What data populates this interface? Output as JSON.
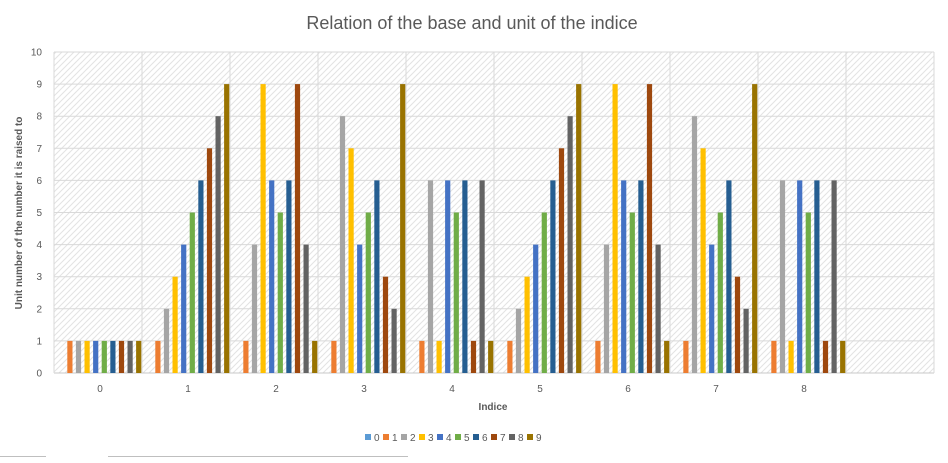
{
  "chart_data": {
    "type": "bar",
    "title": "Relation of the base and unit of the indice",
    "xlabel": "Indice",
    "ylabel": "Unit number of the number it is raised to",
    "ylim": [
      0,
      10
    ],
    "yticks": [
      "0",
      "1",
      "2",
      "3",
      "4",
      "5",
      "6",
      "7",
      "8",
      "9",
      "10"
    ],
    "categories": [
      "0",
      "1",
      "2",
      "3",
      "4",
      "5",
      "6",
      "7",
      "8"
    ],
    "grid": true,
    "legend_position": "bottom",
    "series": [
      {
        "name": "0",
        "color": "#5B9BD5",
        "values": [
          0,
          0,
          0,
          0,
          0,
          0,
          0,
          0,
          0
        ]
      },
      {
        "name": "1",
        "color": "#ED7D31",
        "values": [
          1,
          1,
          1,
          1,
          1,
          1,
          1,
          1,
          1
        ]
      },
      {
        "name": "2",
        "color": "#A5A5A5",
        "values": [
          1,
          2,
          4,
          8,
          6,
          2,
          4,
          8,
          6
        ]
      },
      {
        "name": "3",
        "color": "#FFC000",
        "values": [
          1,
          3,
          9,
          7,
          1,
          3,
          9,
          7,
          1
        ]
      },
      {
        "name": "4",
        "color": "#4472C4",
        "values": [
          1,
          4,
          6,
          4,
          6,
          4,
          6,
          4,
          6
        ]
      },
      {
        "name": "5",
        "color": "#70AD47",
        "values": [
          1,
          5,
          5,
          5,
          5,
          5,
          5,
          5,
          5
        ]
      },
      {
        "name": "6",
        "color": "#255E91",
        "values": [
          1,
          6,
          6,
          6,
          6,
          6,
          6,
          6,
          6
        ]
      },
      {
        "name": "7",
        "color": "#9E480E",
        "values": [
          1,
          7,
          9,
          3,
          1,
          7,
          9,
          3,
          1
        ]
      },
      {
        "name": "8",
        "color": "#636363",
        "values": [
          1,
          8,
          4,
          2,
          6,
          8,
          4,
          2,
          6
        ]
      },
      {
        "name": "9",
        "color": "#997300",
        "values": [
          1,
          9,
          1,
          9,
          1,
          9,
          1,
          9,
          1
        ]
      }
    ]
  }
}
